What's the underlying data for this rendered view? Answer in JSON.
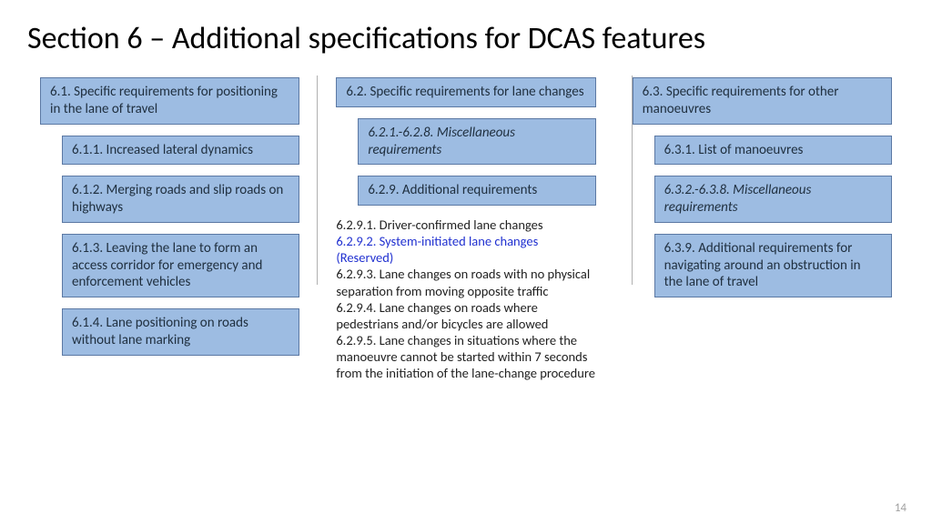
{
  "title": "Section 6 – Additional specifications for DCAS features",
  "page_number": "14",
  "colors": {
    "box_bg": "#9dbce2",
    "box_border": "#5b78a3",
    "reserved_text": "#2030d0",
    "divider": "#b0b0b0",
    "page_num": "#a0a0a0"
  },
  "columns": {
    "col1": {
      "header": "6.1. Specific requirements for positioning in the lane of travel",
      "items": [
        "6.1.1. Increased lateral dynamics",
        "6.1.2. Merging roads and slip roads on highways",
        "6.1.3. Leaving the lane to form an access corridor for emergency and enforcement vehicles",
        "6.1.4. Lane positioning on roads without lane marking"
      ]
    },
    "col2": {
      "header": "6.2. Specific requirements for lane changes",
      "items": [
        "6.2.1.-6.2.8. Miscellaneous requirements",
        "6.2.9. Additional requirements"
      ],
      "sublist": {
        "l1": "6.2.9.1. Driver-confirmed lane changes",
        "l2": "6.2.9.2. System-initiated lane changes (Reserved)",
        "l3": "6.2.9.3. Lane changes on roads with no physical separation from moving opposite traffic",
        "l4": "6.2.9.4. Lane changes on roads where pedestrians and/or bicycles are allowed",
        "l5": "6.2.9.5. Lane changes in situations where the manoeuvre cannot be started within 7 seconds from the initiation of the lane-change procedure"
      }
    },
    "col3": {
      "header": "6.3. Specific requirements for other manoeuvres",
      "items": [
        "6.3.1. List of manoeuvres",
        "6.3.2.-6.3.8. Miscellaneous requirements",
        "6.3.9. Additional requirements for navigating  around an obstruction in the lane of travel"
      ]
    }
  }
}
